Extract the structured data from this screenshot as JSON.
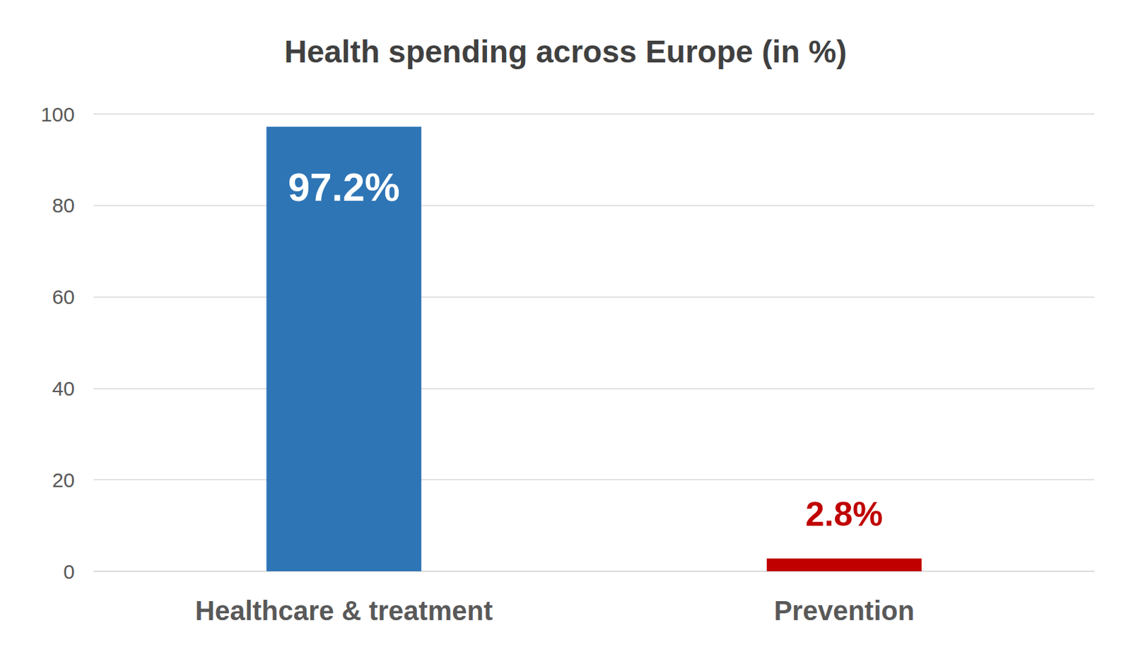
{
  "chart_data": {
    "type": "bar",
    "title": "Health spending across Europe (in %)",
    "categories": [
      "Healthcare & treatment",
      "Prevention"
    ],
    "values": [
      97.2,
      2.8
    ],
    "value_labels": [
      "97.2%",
      "2.8%"
    ],
    "colors": [
      "#2e75b6",
      "#c00000"
    ],
    "ylim": [
      0,
      100
    ],
    "yticks": [
      0,
      20,
      40,
      60,
      80,
      100
    ],
    "grid": true,
    "data_labels": true
  }
}
